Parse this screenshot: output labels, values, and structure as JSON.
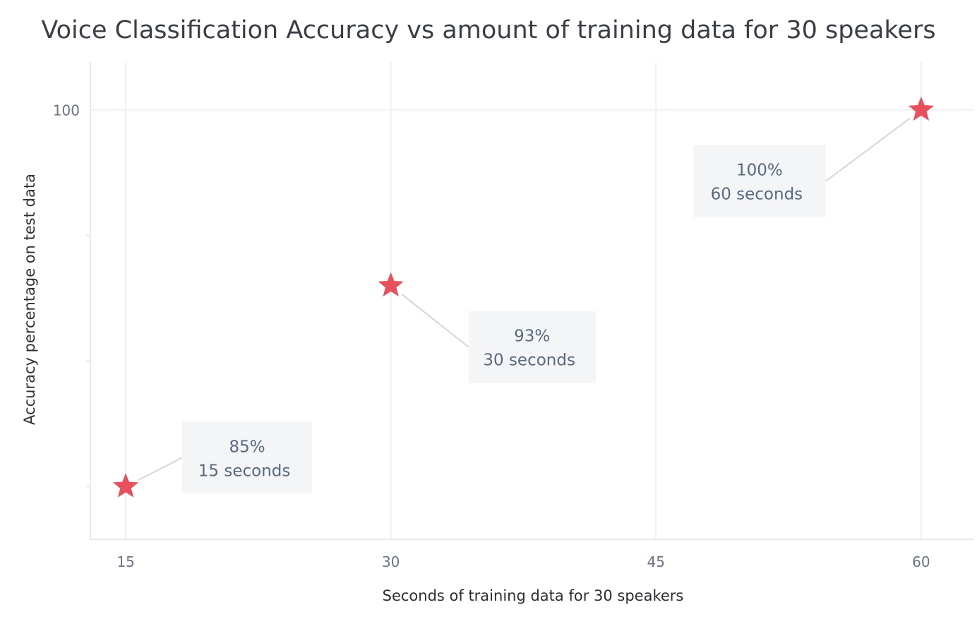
{
  "chart_data": {
    "type": "scatter",
    "title": "Voice Classification Accuracy vs amount of training data for 30 speakers",
    "xlabel": "Seconds of training data for 30 speakers",
    "ylabel": "Accuracy percentage on test data",
    "x_ticks": [
      "15",
      "30",
      "45",
      "60"
    ],
    "y_ticks": [
      "100"
    ],
    "xlim": [
      13,
      63
    ],
    "ylim": [
      82.9,
      101.9
    ],
    "grid": true,
    "marker": "star",
    "marker_color": "#e8505b",
    "series": [
      {
        "points": [
          {
            "x": 15,
            "y": 85,
            "label_line1": "85%",
            "label_line2": "15 seconds"
          },
          {
            "x": 30,
            "y": 93,
            "label_line1": "93%",
            "label_line2": "30 seconds"
          },
          {
            "x": 60,
            "y": 100,
            "label_line1": "100%",
            "label_line2": "60 seconds"
          }
        ]
      }
    ]
  }
}
